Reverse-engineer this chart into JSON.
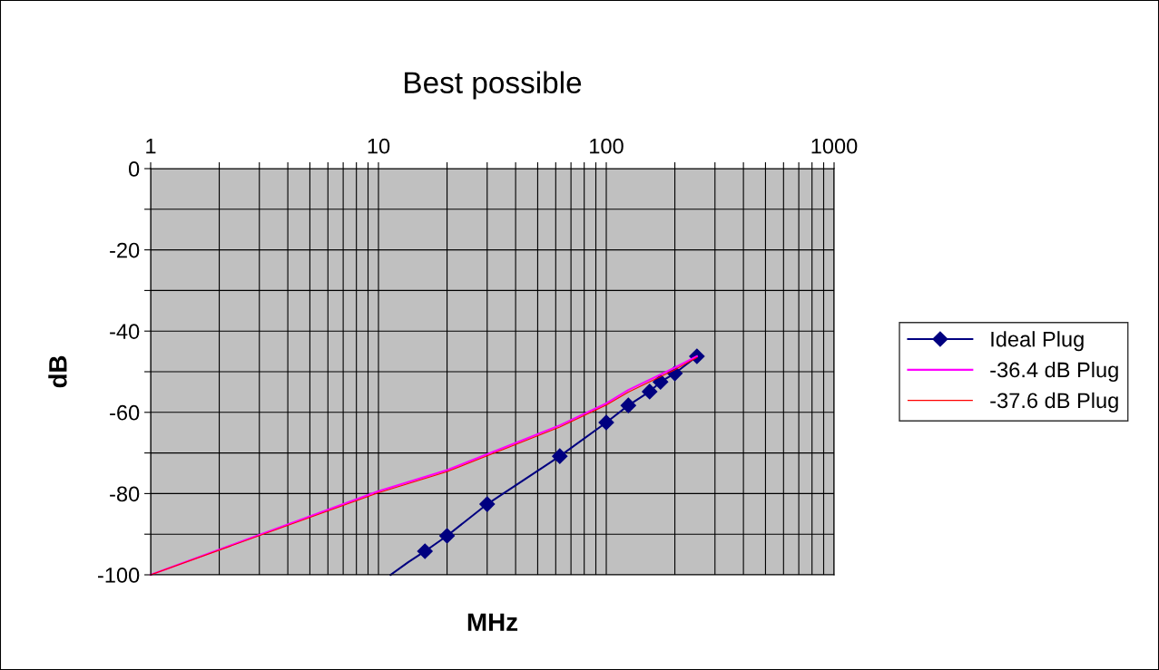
{
  "chart_data": {
    "type": "line",
    "title": "Best possible",
    "xlabel": "MHz",
    "ylabel": "dB",
    "log": "x",
    "xlim": [
      1,
      1000
    ],
    "ylim": [
      -100,
      0
    ],
    "xticks": [
      1,
      {
        "value": 2,
        "label": null
      },
      {
        "value": 3,
        "label": null
      },
      {
        "value": 4,
        "label": null
      },
      {
        "value": 5,
        "label": null
      },
      {
        "value": 6,
        "label": null
      },
      {
        "value": 7,
        "label": null
      },
      {
        "value": 8,
        "label": null
      },
      {
        "value": 9,
        "label": null
      },
      10,
      {
        "value": 20,
        "label": null
      },
      {
        "value": 30,
        "label": null
      },
      {
        "value": 40,
        "label": null
      },
      {
        "value": 50,
        "label": null
      },
      {
        "value": 60,
        "label": null
      },
      {
        "value": 70,
        "label": null
      },
      {
        "value": 80,
        "label": null
      },
      {
        "value": 90,
        "label": null
      },
      100,
      {
        "value": 200,
        "label": null
      },
      {
        "value": 300,
        "label": null
      },
      {
        "value": 400,
        "label": null
      },
      {
        "value": 500,
        "label": null
      },
      {
        "value": 600,
        "label": null
      },
      {
        "value": 700,
        "label": null
      },
      {
        "value": 800,
        "label": null
      },
      {
        "value": 900,
        "label": null
      },
      1000
    ],
    "yticks": [
      -100,
      {
        "value": -90,
        "label": null
      },
      -80,
      {
        "value": -70,
        "label": null
      },
      -60,
      {
        "value": -50,
        "label": null
      },
      -40,
      {
        "value": -30,
        "label": null
      },
      -20,
      {
        "value": -10,
        "label": null
      },
      0
    ],
    "grid": true,
    "legend": "right",
    "series": [
      {
        "name": "Ideal Plug",
        "color": "#000080",
        "marker": "diamond",
        "x": [
          16,
          20,
          30,
          62.5,
          100,
          125,
          155,
          173,
          200,
          250
        ],
        "values": [
          -94.2,
          -90.4,
          -82.6,
          -70.8,
          -62.5,
          -58.3,
          -54.9,
          -52.5,
          -50.4,
          -46.2
        ]
      },
      {
        "color": "#000080",
        "marker": "none",
        "x": [
          11.3,
          13.5,
          16
        ],
        "values": [
          -100,
          -96.9,
          -94.2
        ]
      },
      {
        "name": "-36.4 dB Plug",
        "color": "#ff00ff",
        "x": [
          1,
          10,
          20,
          30,
          62.5,
          100,
          125,
          200,
          250
        ],
        "values": [
          -100,
          -79.4,
          -74.2,
          -70.3,
          -63.2,
          -57.8,
          -54.5,
          -49,
          -46.2
        ]
      },
      {
        "name": "-37.6 dB Plug",
        "color": "#ff0000",
        "x": [
          1,
          10,
          20,
          30,
          62.5,
          100,
          125,
          200,
          250
        ],
        "values": [
          -100,
          -79.8,
          -74.6,
          -70.7,
          -63.6,
          -58.2,
          -55,
          -49.5,
          -46.5
        ]
      }
    ]
  }
}
